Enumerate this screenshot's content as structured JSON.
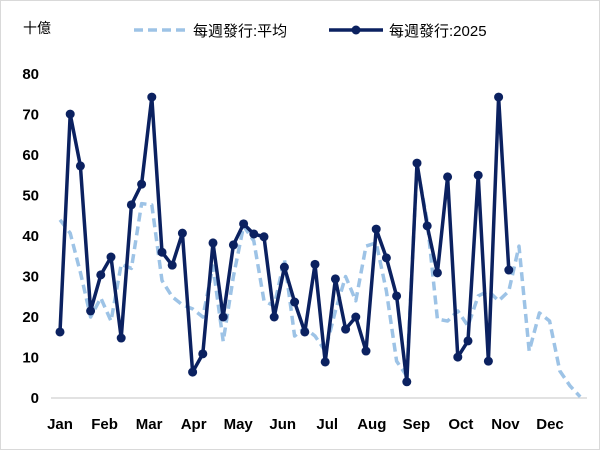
{
  "chart_data": {
    "type": "line",
    "unit_label": "十億",
    "ylim": [
      0,
      80
    ],
    "yticks": [
      0,
      10,
      20,
      30,
      40,
      50,
      60,
      70,
      80
    ],
    "x_unit": "week",
    "month_labels": [
      "Jan",
      "Feb",
      "Mar",
      "Apr",
      "May",
      "Jun",
      "Jul",
      "Aug",
      "Sep",
      "Oct",
      "Nov",
      "Dec"
    ],
    "legend_position": "top",
    "grid": false,
    "series": [
      {
        "name": "每週發行:平均",
        "style": "dashed",
        "color": "#9dc3e6",
        "values": [
          44,
          40.7,
          31,
          20,
          24.7,
          19,
          33,
          32,
          48,
          47.7,
          29,
          25,
          23,
          22,
          20,
          32.6,
          14,
          30,
          42.5,
          38.8,
          24,
          22.7,
          34.3,
          15.3,
          17.3,
          15.3,
          11.6,
          21.5,
          30,
          24,
          37.5,
          38.3,
          26.4,
          9.1,
          5.4,
          57.3,
          43.7,
          19.5,
          19,
          21.5,
          17.8,
          25.2,
          26.4,
          24,
          26.4,
          37.5,
          11.6,
          21,
          19,
          6.7,
          3,
          0.3
        ]
      },
      {
        "name": "每週發行:2025",
        "style": "solid-markers",
        "color": "#0b2160",
        "values": [
          16.3,
          70.1,
          57.3,
          21.5,
          30.4,
          34.8,
          14.8,
          47.7,
          52.8,
          74.3,
          36,
          32.8,
          40.7,
          6.4,
          10.9,
          38.3,
          20,
          37.8,
          43,
          40.5,
          39.8,
          20,
          32.3,
          23.7,
          16.3,
          33,
          8.9,
          29.4,
          17,
          20,
          11.6,
          41.7,
          34.6,
          25.2,
          4,
          58,
          42.5,
          30.9,
          54.6,
          10.1,
          14.1,
          55,
          9.1,
          74.3,
          31.6
        ]
      }
    ]
  }
}
